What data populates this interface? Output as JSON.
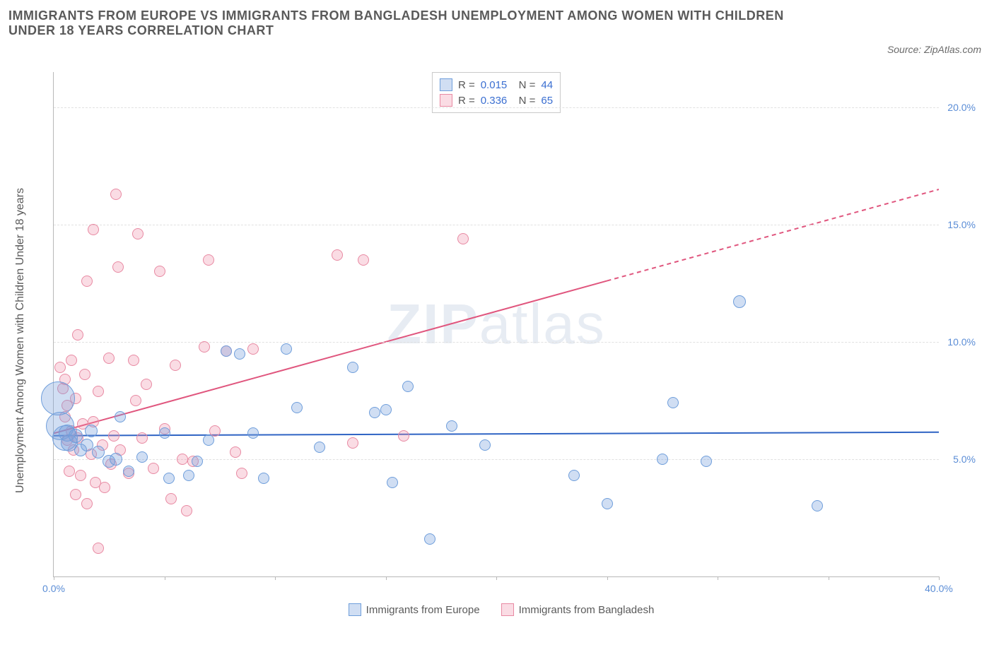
{
  "title": "IMMIGRANTS FROM EUROPE VS IMMIGRANTS FROM BANGLADESH UNEMPLOYMENT AMONG WOMEN WITH CHILDREN UNDER 18 YEARS CORRELATION CHART",
  "source": "Source: ZipAtlas.com",
  "watermark_bold": "ZIP",
  "watermark_light": "atlas",
  "chart": {
    "type": "scatter",
    "ylabel": "Unemployment Among Women with Children Under 18 years",
    "xlim": [
      0,
      40
    ],
    "ylim": [
      0,
      21.5
    ],
    "xticks": [
      0,
      5,
      10,
      15,
      20,
      25,
      30,
      35,
      40
    ],
    "xtick_labels": [
      "0.0%",
      "",
      "",
      "",
      "",
      "",
      "",
      "",
      "40.0%"
    ],
    "yticks": [
      5,
      10,
      15,
      20
    ],
    "ytick_labels": [
      "5.0%",
      "10.0%",
      "15.0%",
      "20.0%"
    ],
    "grid_color": "#e1e1e1",
    "axis_color": "#b8b8b8",
    "tick_color": "#5b8dd6",
    "series": [
      {
        "name": "Immigrants from Europe",
        "fill": "rgba(120,160,220,0.35)",
        "stroke": "#6f9edb",
        "trend": {
          "y0": 6.0,
          "y40": 6.15,
          "color": "#2f64c4",
          "width": 2,
          "dashFrom": 40
        },
        "stats": {
          "R": "0.015",
          "N": "44"
        },
        "points": [
          {
            "x": 0.2,
            "y": 7.6,
            "r": 24
          },
          {
            "x": 0.3,
            "y": 6.4,
            "r": 20
          },
          {
            "x": 0.5,
            "y": 5.9,
            "r": 18
          },
          {
            "x": 0.6,
            "y": 6.1,
            "r": 12
          },
          {
            "x": 0.7,
            "y": 5.7,
            "r": 12
          },
          {
            "x": 1.0,
            "y": 6.0,
            "r": 10
          },
          {
            "x": 1.2,
            "y": 5.4,
            "r": 9
          },
          {
            "x": 1.5,
            "y": 5.6,
            "r": 9
          },
          {
            "x": 1.7,
            "y": 6.2,
            "r": 9
          },
          {
            "x": 2.0,
            "y": 5.3,
            "r": 9
          },
          {
            "x": 2.5,
            "y": 4.9,
            "r": 9
          },
          {
            "x": 2.8,
            "y": 5.0,
            "r": 9
          },
          {
            "x": 3.0,
            "y": 6.8,
            "r": 8
          },
          {
            "x": 3.4,
            "y": 4.5,
            "r": 8
          },
          {
            "x": 4.0,
            "y": 5.1,
            "r": 8
          },
          {
            "x": 5.0,
            "y": 6.1,
            "r": 8
          },
          {
            "x": 5.2,
            "y": 4.2,
            "r": 8
          },
          {
            "x": 6.1,
            "y": 4.3,
            "r": 8
          },
          {
            "x": 6.5,
            "y": 4.9,
            "r": 8
          },
          {
            "x": 7.0,
            "y": 5.8,
            "r": 8
          },
          {
            "x": 7.8,
            "y": 9.6,
            "r": 8
          },
          {
            "x": 8.4,
            "y": 9.5,
            "r": 8
          },
          {
            "x": 9.0,
            "y": 6.1,
            "r": 8
          },
          {
            "x": 9.5,
            "y": 4.2,
            "r": 8
          },
          {
            "x": 10.5,
            "y": 9.7,
            "r": 8
          },
          {
            "x": 11.0,
            "y": 7.2,
            "r": 8
          },
          {
            "x": 12.0,
            "y": 5.5,
            "r": 8
          },
          {
            "x": 13.5,
            "y": 8.9,
            "r": 8
          },
          {
            "x": 14.5,
            "y": 7.0,
            "r": 8
          },
          {
            "x": 15.0,
            "y": 7.1,
            "r": 8
          },
          {
            "x": 15.3,
            "y": 4.0,
            "r": 8
          },
          {
            "x": 16.0,
            "y": 8.1,
            "r": 8
          },
          {
            "x": 17.0,
            "y": 1.6,
            "r": 8
          },
          {
            "x": 18.0,
            "y": 6.4,
            "r": 8
          },
          {
            "x": 19.5,
            "y": 5.6,
            "r": 8
          },
          {
            "x": 23.5,
            "y": 4.3,
            "r": 8
          },
          {
            "x": 25.0,
            "y": 3.1,
            "r": 8
          },
          {
            "x": 27.5,
            "y": 5.0,
            "r": 8
          },
          {
            "x": 28.0,
            "y": 7.4,
            "r": 8
          },
          {
            "x": 29.5,
            "y": 4.9,
            "r": 8
          },
          {
            "x": 31.0,
            "y": 11.7,
            "r": 9
          },
          {
            "x": 34.5,
            "y": 3.0,
            "r": 8
          }
        ]
      },
      {
        "name": "Immigrants from Bangladesh",
        "fill": "rgba(240,140,165,0.30)",
        "stroke": "#e88aa3",
        "trend": {
          "y0": 6.1,
          "y40": 16.5,
          "color": "#e0567e",
          "width": 2,
          "dashFrom": 25
        },
        "stats": {
          "R": "0.336",
          "N": "65"
        },
        "points": [
          {
            "x": 0.3,
            "y": 8.9,
            "r": 8
          },
          {
            "x": 0.4,
            "y": 8.0,
            "r": 8
          },
          {
            "x": 0.5,
            "y": 8.4,
            "r": 8
          },
          {
            "x": 0.5,
            "y": 6.8,
            "r": 8
          },
          {
            "x": 0.6,
            "y": 7.3,
            "r": 8
          },
          {
            "x": 0.6,
            "y": 5.8,
            "r": 8
          },
          {
            "x": 0.7,
            "y": 4.5,
            "r": 8
          },
          {
            "x": 0.8,
            "y": 6.2,
            "r": 8
          },
          {
            "x": 0.8,
            "y": 9.2,
            "r": 8
          },
          {
            "x": 0.9,
            "y": 5.4,
            "r": 8
          },
          {
            "x": 1.0,
            "y": 7.6,
            "r": 8
          },
          {
            "x": 1.0,
            "y": 3.5,
            "r": 8
          },
          {
            "x": 1.1,
            "y": 10.3,
            "r": 8
          },
          {
            "x": 1.1,
            "y": 5.9,
            "r": 8
          },
          {
            "x": 1.2,
            "y": 4.3,
            "r": 8
          },
          {
            "x": 1.3,
            "y": 6.5,
            "r": 8
          },
          {
            "x": 1.4,
            "y": 8.6,
            "r": 8
          },
          {
            "x": 1.5,
            "y": 3.1,
            "r": 8
          },
          {
            "x": 1.5,
            "y": 12.6,
            "r": 8
          },
          {
            "x": 1.7,
            "y": 5.2,
            "r": 8
          },
          {
            "x": 1.8,
            "y": 14.8,
            "r": 8
          },
          {
            "x": 1.8,
            "y": 6.6,
            "r": 8
          },
          {
            "x": 1.9,
            "y": 4.0,
            "r": 8
          },
          {
            "x": 2.0,
            "y": 7.9,
            "r": 8
          },
          {
            "x": 2.0,
            "y": 1.2,
            "r": 8
          },
          {
            "x": 2.2,
            "y": 5.6,
            "r": 8
          },
          {
            "x": 2.3,
            "y": 3.8,
            "r": 8
          },
          {
            "x": 2.5,
            "y": 9.3,
            "r": 8
          },
          {
            "x": 2.6,
            "y": 4.8,
            "r": 8
          },
          {
            "x": 2.7,
            "y": 6.0,
            "r": 8
          },
          {
            "x": 2.8,
            "y": 16.3,
            "r": 8
          },
          {
            "x": 2.9,
            "y": 13.2,
            "r": 8
          },
          {
            "x": 3.0,
            "y": 5.4,
            "r": 8
          },
          {
            "x": 3.4,
            "y": 4.4,
            "r": 8
          },
          {
            "x": 3.6,
            "y": 9.2,
            "r": 8
          },
          {
            "x": 3.7,
            "y": 7.5,
            "r": 8
          },
          {
            "x": 3.8,
            "y": 14.6,
            "r": 8
          },
          {
            "x": 4.0,
            "y": 5.9,
            "r": 8
          },
          {
            "x": 4.2,
            "y": 8.2,
            "r": 8
          },
          {
            "x": 4.5,
            "y": 4.6,
            "r": 8
          },
          {
            "x": 4.8,
            "y": 13.0,
            "r": 8
          },
          {
            "x": 5.0,
            "y": 6.3,
            "r": 8
          },
          {
            "x": 5.3,
            "y": 3.3,
            "r": 8
          },
          {
            "x": 5.5,
            "y": 9.0,
            "r": 8
          },
          {
            "x": 5.8,
            "y": 5.0,
            "r": 8
          },
          {
            "x": 6.0,
            "y": 2.8,
            "r": 8
          },
          {
            "x": 6.3,
            "y": 4.9,
            "r": 8
          },
          {
            "x": 6.8,
            "y": 9.8,
            "r": 8
          },
          {
            "x": 7.0,
            "y": 13.5,
            "r": 8
          },
          {
            "x": 7.3,
            "y": 6.2,
            "r": 8
          },
          {
            "x": 7.8,
            "y": 9.6,
            "r": 8
          },
          {
            "x": 8.2,
            "y": 5.3,
            "r": 8
          },
          {
            "x": 8.5,
            "y": 4.4,
            "r": 8
          },
          {
            "x": 9.0,
            "y": 9.7,
            "r": 8
          },
          {
            "x": 12.8,
            "y": 13.7,
            "r": 8
          },
          {
            "x": 13.5,
            "y": 5.7,
            "r": 8
          },
          {
            "x": 14.0,
            "y": 13.5,
            "r": 8
          },
          {
            "x": 15.8,
            "y": 6.0,
            "r": 8
          },
          {
            "x": 18.5,
            "y": 14.4,
            "r": 8
          }
        ]
      }
    ],
    "legend_bottom": [
      {
        "label": "Immigrants from Europe",
        "fill": "rgba(120,160,220,0.35)",
        "stroke": "#6f9edb"
      },
      {
        "label": "Immigrants from Bangladesh",
        "fill": "rgba(240,140,165,0.30)",
        "stroke": "#e88aa3"
      }
    ]
  }
}
